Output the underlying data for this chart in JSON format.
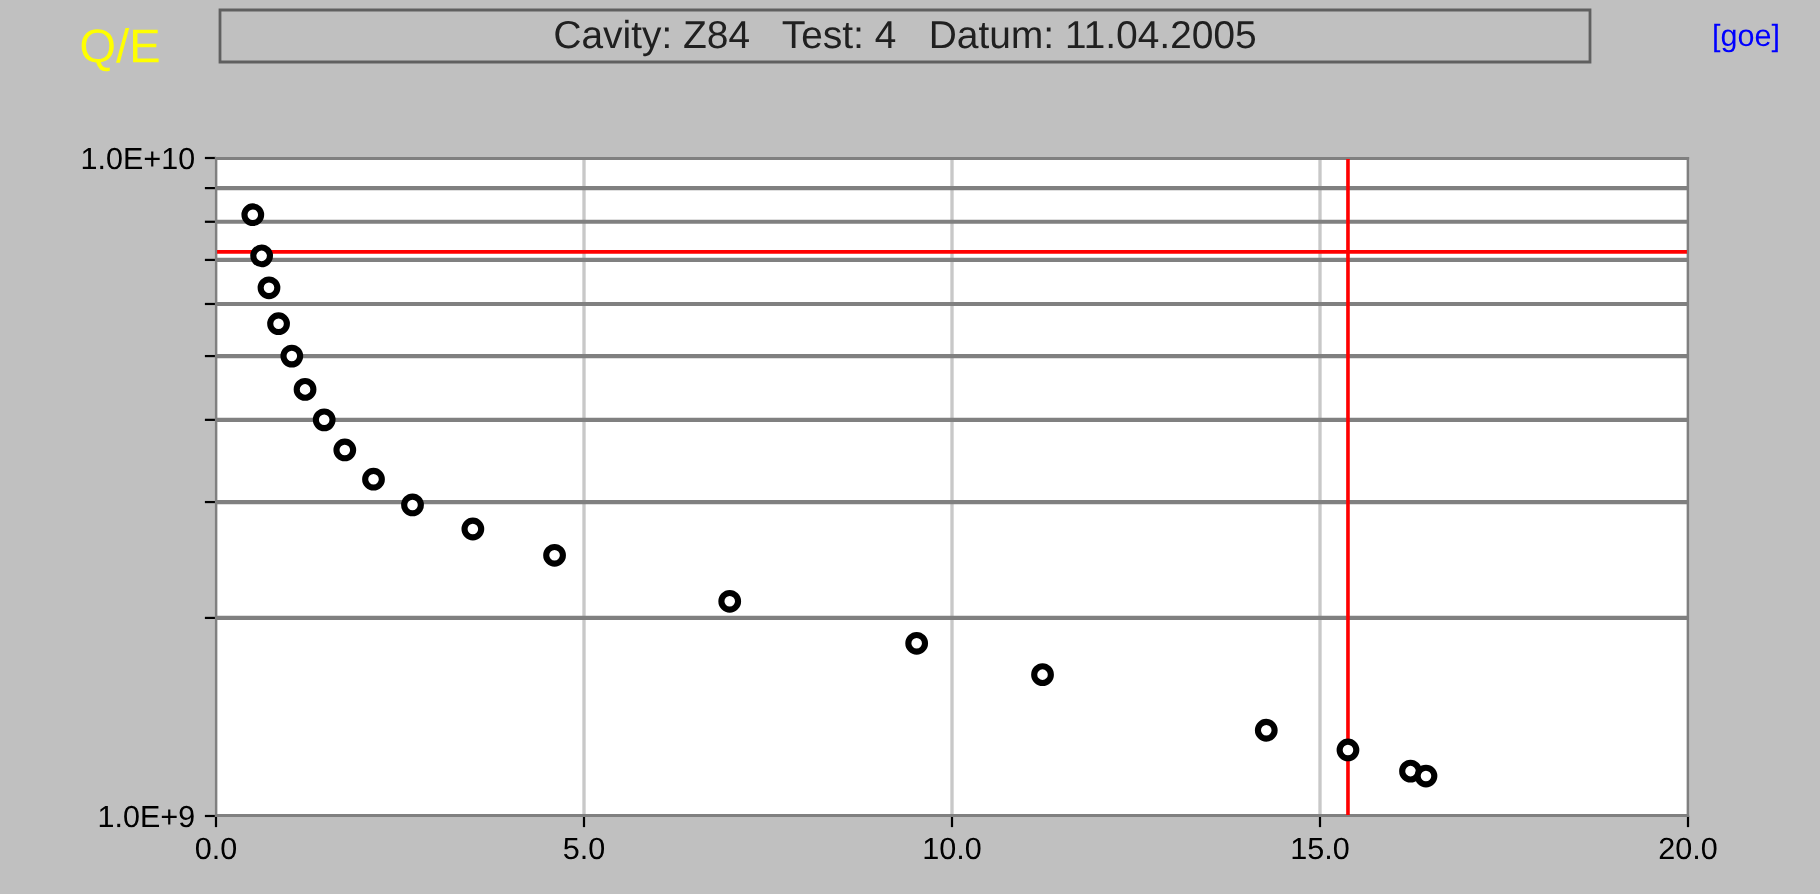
{
  "chart_data": {
    "type": "scatter",
    "title": "Cavity: Z84   Test: 4   Datum: 11.04.2005",
    "ylabel": "Q/E",
    "annotations": [
      "[goe]"
    ],
    "x": [
      0.5,
      0.62,
      0.72,
      0.85,
      1.03,
      1.21,
      1.47,
      1.75,
      2.14,
      2.67,
      3.49,
      4.6,
      6.98,
      9.52,
      11.23,
      14.27,
      15.38,
      16.23,
      16.44
    ],
    "series": [
      {
        "color": "#000000",
        "values": [
          8200000000.0,
          7100000000.0,
          6350000000.0,
          5600000000.0,
          5000000000.0,
          4450000000.0,
          4000000000.0,
          3600000000.0,
          3250000000.0,
          2970000000.0,
          2730000000.0,
          2490000000.0,
          2120000000.0,
          1830000000.0,
          1640000000.0,
          1350000000.0,
          1260000000.0,
          1170000000.0,
          1150000000.0
        ]
      }
    ],
    "log": "y",
    "marker": "circle",
    "grid": true,
    "xlim": [
      0,
      20
    ],
    "xticks": [
      {
        "value": 0,
        "label": "0.0"
      },
      {
        "value": 5,
        "label": "5.0"
      },
      {
        "value": 10,
        "label": "10.0"
      },
      {
        "value": 15,
        "label": "15.0"
      },
      {
        "value": 20,
        "label": "20.0"
      }
    ],
    "ylim": [
      1000000000.0,
      10000000000.0
    ],
    "yticks": [
      {
        "value": 1000000000.0,
        "label": "1.0E+9"
      },
      {
        "value": 2000000000.0,
        "label": null
      },
      {
        "value": 3000000000.0,
        "label": null
      },
      {
        "value": 4000000000.0,
        "label": null
      },
      {
        "value": 5000000000.0,
        "label": null
      },
      {
        "value": 6000000000.0,
        "label": null
      },
      {
        "value": 7000000000.0,
        "label": null
      },
      {
        "value": 8000000000.0,
        "label": null
      },
      {
        "value": 9000000000.0,
        "label": null
      },
      {
        "value": 10000000000.0,
        "label": "1.0E+10"
      }
    ],
    "ref_lines": [
      {
        "axis": "x",
        "value": 15.38,
        "color": "#ff0000"
      },
      {
        "axis": "y",
        "value": 7200000000.0,
        "color": "#ff0000"
      }
    ]
  }
}
